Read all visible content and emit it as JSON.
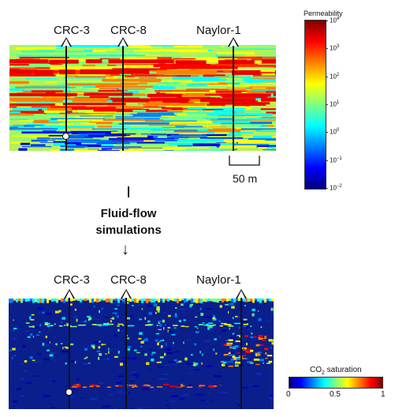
{
  "top_panel": {
    "wells": [
      {
        "id": "crc3",
        "label": "CRC-3",
        "injector": true
      },
      {
        "id": "crc8",
        "label": "CRC-8",
        "injector": false
      },
      {
        "id": "naylor1",
        "label": "Naylor-1",
        "injector": false
      }
    ],
    "scale_bar": "50 m"
  },
  "process": {
    "line1": "Fluid-flow",
    "line2": "simulations",
    "arrow_glyph": "↓"
  },
  "bottom_panel": {
    "wells": [
      {
        "id": "crc3",
        "label": "CRC-3",
        "injector": true
      },
      {
        "id": "crc8",
        "label": "CRC-8",
        "injector": false
      },
      {
        "id": "naylor1",
        "label": "Naylor-1",
        "injector": false
      }
    ]
  },
  "permeability_colorbar": {
    "title": "Permeability",
    "ticks": [
      {
        "base": "10",
        "exp": "4"
      },
      {
        "base": "10",
        "exp": "3"
      },
      {
        "base": "10",
        "exp": "2"
      },
      {
        "base": "10",
        "exp": "1"
      },
      {
        "base": "10",
        "exp": "0"
      },
      {
        "base": "10",
        "exp": "−1"
      },
      {
        "base": "10",
        "exp": "−2"
      }
    ]
  },
  "saturation_colorbar": {
    "title_prefix": "CO",
    "title_sub": "2",
    "title_suffix": " saturation",
    "ticks": [
      "0",
      "0.5",
      "1"
    ]
  },
  "colors": {
    "jet": [
      "#00007f",
      "#0000ff",
      "#007fff",
      "#00ffff",
      "#7fff7f",
      "#ffff00",
      "#ff7f00",
      "#ff0000",
      "#7f0000"
    ],
    "perm_background": "#b6f05a",
    "sat_background": "#0a1e8c"
  }
}
